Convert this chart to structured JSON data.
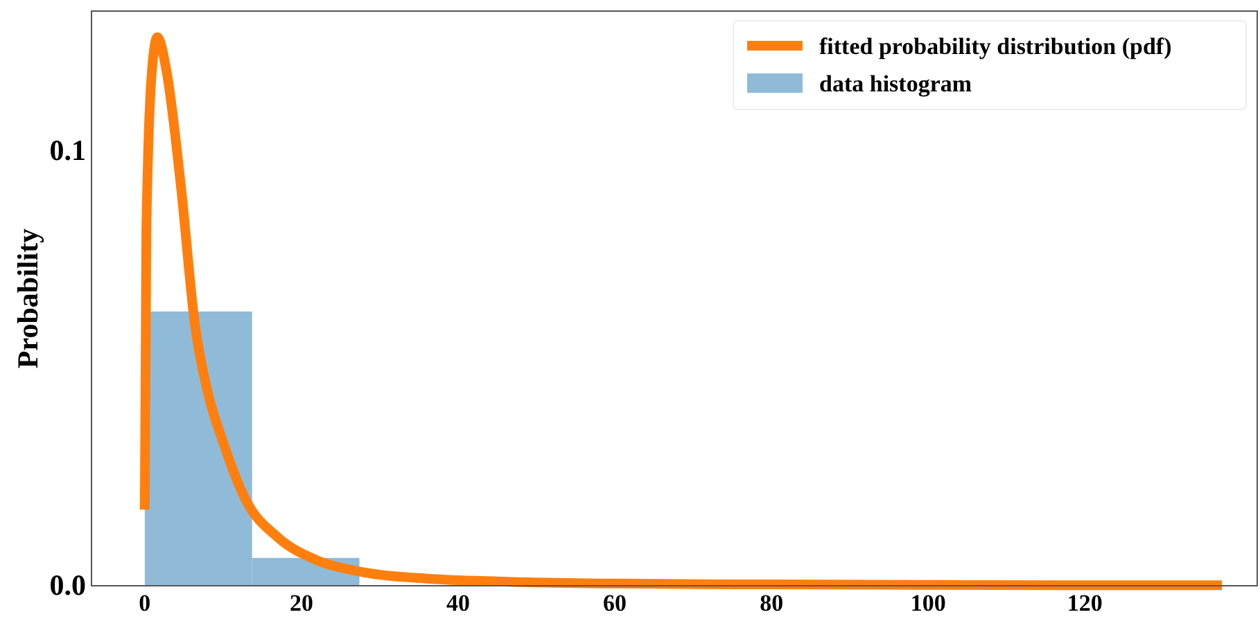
{
  "chart_data": {
    "type": "histogram",
    "ylabel": "Probability",
    "bins": [
      0,
      13.7,
      27.4,
      41.1,
      54.8,
      68.5,
      82.2,
      95.9,
      109.6,
      123.3,
      137
    ],
    "series": [
      {
        "name": "fitted probability distribution (pdf)",
        "type": "line",
        "color": "#ff7f0e",
        "x": [
          0,
          0.2,
          0.9,
          1.6,
          2.8,
          4.6,
          6.4,
          8.1,
          9.9,
          12.9,
          17,
          21.8,
          27.6,
          36.5,
          45,
          60,
          80,
          100,
          120,
          137.5
        ],
        "values": [
          0.0175,
          0.081,
          0.118,
          0.126,
          0.118,
          0.092,
          0.06,
          0.044,
          0.0335,
          0.0197,
          0.0111,
          0.006,
          0.0032,
          0.0016,
          0.001,
          0.0005,
          0.0003,
          0.0002,
          0.0001,
          0.0001
        ]
      },
      {
        "name": "data histogram",
        "color": "#8fbbd9",
        "values": [
          0.063,
          0.0064,
          null,
          0.0003,
          0.0001,
          0,
          0,
          0,
          0,
          0.0001
        ]
      }
    ],
    "xlim": [
      -6.8,
      142
    ],
    "ylim": [
      0,
      0.132
    ],
    "xticks": [
      0,
      20,
      40,
      60,
      80,
      100,
      120
    ],
    "yticks": [
      {
        "value": 0,
        "label": "0.0"
      },
      0.1
    ],
    "legend": "top right",
    "grid": false
  }
}
